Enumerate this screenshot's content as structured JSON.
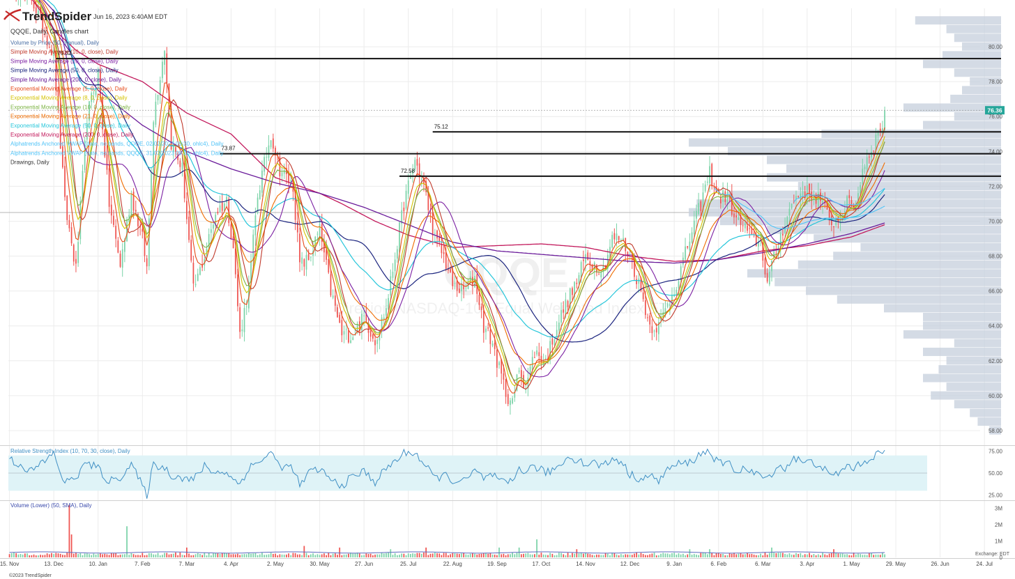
{
  "header": {
    "brand": "TrendSpider",
    "timestamp": "Jun 16, 2023 6:40AM EDT",
    "subtitle": "QQQE, Daily, Candles chart",
    "watermark_symbol": "QQQE",
    "watermark_name": "Direxion NASDAQ-100 Equal Weighted Index ETF"
  },
  "legend": [
    {
      "label": "Volume by Price (50, manual), Daily",
      "color": "#4a6fa5"
    },
    {
      "label": "Simple Moving Average (10, 0, close), Daily",
      "color": "#c0392b"
    },
    {
      "label": "Simple Moving Average (20, 0, close), Daily",
      "color": "#7b1fa2"
    },
    {
      "label": "Simple Moving Average (50, 0, close), Daily",
      "color": "#1a237e"
    },
    {
      "label": "Simple Moving Average (200, 0, close), Daily",
      "color": "#6a1b9a"
    },
    {
      "label": "Exponential Moving Average (5, 0, close), Daily",
      "color": "#e64a19"
    },
    {
      "label": "Exponential Moving Average (8, 0, close), Daily",
      "color": "#d4c300"
    },
    {
      "label": "Exponential Moving Average (10, 0, close), Daily",
      "color": "#7cb342"
    },
    {
      "label": "Exponential Moving Average (21, 0, close), Daily",
      "color": "#ef6c00"
    },
    {
      "label": "Exponential Moving Average (50, 0, close), Daily",
      "color": "#26c6da"
    },
    {
      "label": "Exponential Moving Average (200, 0, close), Daily",
      "color": "#c2185b"
    },
    {
      "label": "Alphatrends Anchored VWAP (date, no bands, QQQE, 02/02/2023 09:30, ohlc4), Daily",
      "color": "#4fc3f7"
    },
    {
      "label": "Alphatrends Anchored VWAP (date, no bands, QQQE, 31/03/2023 09:30, ohlc4), Daily",
      "color": "#4fc3f7"
    },
    {
      "label": "Drawings, Daily",
      "color": "#333333"
    }
  ],
  "levels": [
    {
      "label": "79.32",
      "value": 79.32,
      "from_index": 21
    },
    {
      "label": "73.87",
      "value": 73.87,
      "from_index": 95
    },
    {
      "label": "72.58",
      "value": 72.58,
      "from_index": 176
    },
    {
      "label": "75.12",
      "value": 75.12,
      "from_index": 191
    }
  ],
  "last_price": {
    "label": "76.36",
    "value": 76.36,
    "color": "#26a69a"
  },
  "rsi_label": "Relative Strength Index (10, 70, 30, close), Daily",
  "volume_label": "Volume (Lower) (50, SMA), Daily",
  "exchange_label": "Exchange: EDT",
  "copyright": "©2023 TrendSpider",
  "colors": {
    "up": "#7bd3a8",
    "down": "#ef5350",
    "grid": "#ececec",
    "vbp": "#c5cfdc",
    "rsi_band": "#dff3f7"
  },
  "chart_data": {
    "type": "line",
    "title": "QQQE, Daily, Candles chart",
    "price_axis": {
      "ticks": [
        "58.00",
        "60.00",
        "62.00",
        "64.00",
        "66.00",
        "68.00",
        "70.00",
        "72.00",
        "74.00",
        "76.00",
        "78.00",
        "80.00"
      ],
      "ylim": [
        57.2,
        82.2
      ]
    },
    "rsi_axis": {
      "ticks": [
        "25.00",
        "50.00",
        "75.00"
      ],
      "ylim": [
        20,
        80
      ],
      "band": [
        30,
        70
      ]
    },
    "volume_axis": {
      "ticks": [
        "0",
        "1M",
        "2M",
        "3M"
      ],
      "ylim": [
        0,
        3.4
      ]
    },
    "x_ticks": [
      "15. Nov",
      "13. Dec",
      "10. Jan",
      "7. Feb",
      "7. Mar",
      "4. Apr",
      "2. May",
      "30. May",
      "27. Jun",
      "25. Jul",
      "22. Aug",
      "19. Sep",
      "17. Oct",
      "14. Nov",
      "12. Dec",
      "9. Jan",
      "6. Feb",
      "6. Mar",
      "3. Apr",
      "1. May",
      "29. May",
      "26. Jun",
      "24. Jul"
    ],
    "x_tick_index": [
      0,
      20,
      40,
      60,
      80,
      100,
      120,
      140,
      160,
      180,
      200,
      220,
      240,
      260,
      280,
      300,
      320,
      340,
      360,
      380,
      400,
      420,
      440
    ],
    "price_anchors": [
      [
        0,
        83.5
      ],
      [
        10,
        82.8
      ],
      [
        20,
        79.5
      ],
      [
        25,
        71
      ],
      [
        30,
        67.2
      ],
      [
        35,
        76
      ],
      [
        40,
        78.5
      ],
      [
        45,
        71
      ],
      [
        50,
        67.5
      ],
      [
        55,
        71.5
      ],
      [
        60,
        69
      ],
      [
        62,
        67.3
      ],
      [
        65,
        76
      ],
      [
        70,
        80
      ],
      [
        73,
        74.5
      ],
      [
        78,
        73
      ],
      [
        83,
        66
      ],
      [
        88,
        68
      ],
      [
        93,
        70.5
      ],
      [
        98,
        71.2
      ],
      [
        101,
        68.5
      ],
      [
        104,
        63.5
      ],
      [
        108,
        66.2
      ],
      [
        112,
        71.5
      ],
      [
        118,
        75
      ],
      [
        122,
        73
      ],
      [
        128,
        72
      ],
      [
        131,
        67.5
      ],
      [
        135,
        67.8
      ],
      [
        140,
        69.5
      ],
      [
        145,
        66
      ],
      [
        150,
        63.5
      ],
      [
        155,
        63.5
      ],
      [
        160,
        64.5
      ],
      [
        165,
        63.2
      ],
      [
        170,
        65
      ],
      [
        178,
        71
      ],
      [
        183,
        73.5
      ],
      [
        187,
        72
      ],
      [
        192,
        69
      ],
      [
        196,
        68
      ],
      [
        200,
        66.3
      ],
      [
        205,
        66
      ],
      [
        210,
        66.8
      ],
      [
        214,
        64
      ],
      [
        218,
        63
      ],
      [
        221,
        61.5
      ],
      [
        224,
        60.2
      ],
      [
        227,
        59.5
      ],
      [
        230,
        61.6
      ],
      [
        233,
        60.5
      ],
      [
        237,
        62.5
      ],
      [
        242,
        62
      ],
      [
        247,
        64
      ],
      [
        252,
        65.5
      ],
      [
        256,
        66.5
      ],
      [
        260,
        68
      ],
      [
        264,
        67.5
      ],
      [
        268,
        67.3
      ],
      [
        272,
        69
      ],
      [
        276,
        69
      ],
      [
        280,
        68
      ],
      [
        285,
        66
      ],
      [
        289,
        64
      ],
      [
        293,
        64
      ],
      [
        298,
        65.5
      ],
      [
        302,
        66.8
      ],
      [
        307,
        69
      ],
      [
        312,
        71
      ],
      [
        316,
        72.8
      ],
      [
        320,
        71.3
      ],
      [
        324,
        71.5
      ],
      [
        328,
        70
      ],
      [
        331,
        69.8
      ],
      [
        335,
        69
      ],
      [
        339,
        68.8
      ],
      [
        342,
        66.5
      ],
      [
        346,
        68.3
      ],
      [
        350,
        70
      ],
      [
        354,
        71.2
      ],
      [
        358,
        71.8
      ],
      [
        362,
        71.5
      ],
      [
        366,
        71.3
      ],
      [
        370,
        70
      ],
      [
        374,
        70
      ],
      [
        378,
        71
      ],
      [
        382,
        71
      ],
      [
        385,
        73
      ],
      [
        389,
        74.2
      ],
      [
        392,
        75
      ],
      [
        394,
        75.6
      ],
      [
        395,
        76.36
      ]
    ],
    "rsi_anchors": [
      [
        0,
        66
      ],
      [
        10,
        52
      ],
      [
        20,
        72
      ],
      [
        25,
        38
      ],
      [
        30,
        46
      ],
      [
        35,
        62
      ],
      [
        40,
        55
      ],
      [
        45,
        40
      ],
      [
        50,
        46
      ],
      [
        55,
        60
      ],
      [
        60,
        35
      ],
      [
        62,
        25
      ],
      [
        65,
        60
      ],
      [
        70,
        56
      ],
      [
        73,
        48
      ],
      [
        78,
        45
      ],
      [
        83,
        42
      ],
      [
        88,
        58
      ],
      [
        93,
        50
      ],
      [
        98,
        52
      ],
      [
        101,
        42
      ],
      [
        104,
        38
      ],
      [
        108,
        56
      ],
      [
        112,
        62
      ],
      [
        118,
        73
      ],
      [
        122,
        58
      ],
      [
        128,
        56
      ],
      [
        131,
        35
      ],
      [
        135,
        50
      ],
      [
        140,
        55
      ],
      [
        145,
        42
      ],
      [
        150,
        36
      ],
      [
        155,
        46
      ],
      [
        160,
        52
      ],
      [
        165,
        40
      ],
      [
        170,
        55
      ],
      [
        178,
        72
      ],
      [
        183,
        74
      ],
      [
        187,
        60
      ],
      [
        192,
        44
      ],
      [
        196,
        48
      ],
      [
        200,
        42
      ],
      [
        205,
        40
      ],
      [
        210,
        52
      ],
      [
        214,
        44
      ],
      [
        218,
        48
      ],
      [
        221,
        40
      ],
      [
        224,
        38
      ],
      [
        227,
        40
      ],
      [
        230,
        56
      ],
      [
        233,
        52
      ],
      [
        237,
        58
      ],
      [
        242,
        50
      ],
      [
        247,
        56
      ],
      [
        252,
        68
      ],
      [
        256,
        66
      ],
      [
        260,
        60
      ],
      [
        264,
        62
      ],
      [
        268,
        58
      ],
      [
        272,
        66
      ],
      [
        276,
        64
      ],
      [
        280,
        48
      ],
      [
        285,
        44
      ],
      [
        289,
        46
      ],
      [
        293,
        42
      ],
      [
        298,
        56
      ],
      [
        302,
        60
      ],
      [
        307,
        62
      ],
      [
        312,
        72
      ],
      [
        316,
        75
      ],
      [
        320,
        60
      ],
      [
        324,
        62
      ],
      [
        328,
        52
      ],
      [
        331,
        56
      ],
      [
        335,
        50
      ],
      [
        339,
        48
      ],
      [
        342,
        42
      ],
      [
        346,
        58
      ],
      [
        350,
        55
      ],
      [
        354,
        68
      ],
      [
        358,
        62
      ],
      [
        362,
        62
      ],
      [
        366,
        60
      ],
      [
        370,
        46
      ],
      [
        374,
        50
      ],
      [
        378,
        58
      ],
      [
        382,
        56
      ],
      [
        385,
        62
      ],
      [
        389,
        68
      ],
      [
        392,
        72
      ],
      [
        394,
        73
      ],
      [
        395,
        76
      ]
    ],
    "volume_spikes": [
      [
        27,
        3.2
      ],
      [
        28,
        1.4
      ],
      [
        53,
        1.9
      ],
      [
        80,
        0.6
      ],
      [
        133,
        0.7
      ],
      [
        149,
        0.6
      ],
      [
        172,
        0.5
      ],
      [
        188,
        0.6
      ],
      [
        221,
        0.6
      ],
      [
        230,
        0.6
      ],
      [
        238,
        1.1
      ],
      [
        256,
        0.5
      ],
      [
        307,
        0.5
      ],
      [
        316,
        0.5
      ],
      [
        344,
        0.6
      ],
      [
        372,
        0.5
      ]
    ],
    "sma200_anchors": [
      [
        0,
        86
      ],
      [
        20,
        81
      ],
      [
        40,
        77.5
      ],
      [
        60,
        75.5
      ],
      [
        80,
        74
      ],
      [
        100,
        73
      ],
      [
        120,
        72.2
      ],
      [
        140,
        71.6
      ],
      [
        160,
        70.8
      ],
      [
        180,
        69.8
      ],
      [
        200,
        68.8
      ],
      [
        220,
        68.3
      ],
      [
        240,
        68.1
      ],
      [
        260,
        67.9
      ],
      [
        280,
        67.7
      ],
      [
        300,
        67.6
      ],
      [
        320,
        67.8
      ],
      [
        340,
        68.2
      ],
      [
        360,
        68.7
      ],
      [
        380,
        69.3
      ],
      [
        395,
        69.9
      ]
    ],
    "ema200_anchors": [
      [
        0,
        84.5
      ],
      [
        20,
        81
      ],
      [
        30,
        79.8
      ],
      [
        40,
        79
      ],
      [
        60,
        78
      ],
      [
        80,
        76.2
      ],
      [
        100,
        75
      ],
      [
        120,
        72.5
      ],
      [
        140,
        71.6
      ],
      [
        150,
        71
      ],
      [
        165,
        70
      ],
      [
        180,
        69.2
      ],
      [
        200,
        68.5
      ],
      [
        220,
        68.6
      ],
      [
        240,
        68.7
      ],
      [
        260,
        68.5
      ],
      [
        280,
        68.0
      ],
      [
        300,
        67.7
      ],
      [
        320,
        67.8
      ],
      [
        340,
        68.3
      ],
      [
        360,
        68.6
      ],
      [
        380,
        69.1
      ],
      [
        395,
        69.8
      ]
    ],
    "vbp_rows": [
      [
        81.5,
        0.22
      ],
      [
        81,
        0.14
      ],
      [
        80.5,
        0.12
      ],
      [
        80,
        0.1
      ],
      [
        79.5,
        0.15
      ],
      [
        79,
        0.2
      ],
      [
        78.5,
        0.12
      ],
      [
        78,
        0.08
      ],
      [
        77.5,
        0.1
      ],
      [
        77,
        0.13
      ],
      [
        76.5,
        0.25
      ],
      [
        76,
        0.12
      ],
      [
        75.5,
        0.2
      ],
      [
        75,
        0.46
      ],
      [
        74.5,
        0.8
      ],
      [
        74,
        0.7
      ],
      [
        73.5,
        0.6
      ],
      [
        73,
        0.55
      ],
      [
        72.5,
        0.6
      ],
      [
        72,
        0.52
      ],
      [
        71.5,
        0.7
      ],
      [
        71,
        0.78
      ],
      [
        70.5,
        0.8
      ],
      [
        70,
        0.72
      ],
      [
        69.5,
        0.6
      ],
      [
        69,
        0.48
      ],
      [
        68.5,
        0.36
      ],
      [
        68,
        0.43
      ],
      [
        67.5,
        0.52
      ],
      [
        67,
        0.65
      ],
      [
        66.5,
        0.58
      ],
      [
        66,
        0.5
      ],
      [
        65.5,
        0.42
      ],
      [
        65,
        0.3
      ],
      [
        64.5,
        0.2
      ],
      [
        64,
        0.2
      ],
      [
        63.5,
        0.25
      ],
      [
        63,
        0.12
      ],
      [
        62.5,
        0.2
      ],
      [
        62,
        0.14
      ],
      [
        61.5,
        0.16
      ],
      [
        61,
        0.2
      ],
      [
        60.5,
        0.14
      ],
      [
        60,
        0.18
      ],
      [
        59.5,
        0.12
      ],
      [
        59,
        0.08
      ],
      [
        58.5,
        0.06
      ],
      [
        58,
        0.03
      ]
    ]
  }
}
